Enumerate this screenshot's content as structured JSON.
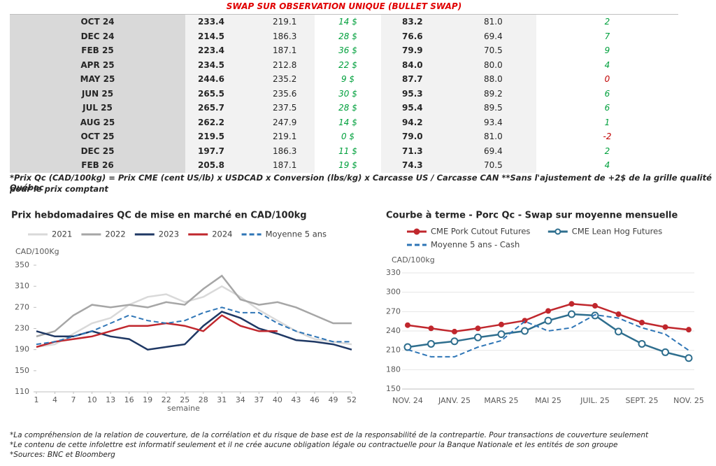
{
  "table": {
    "title": "SWAP SUR OBSERVATION UNIQUE (BULLET SWAP)",
    "rows": [
      [
        "OCT 24",
        "233.4",
        "219.1",
        "14 $",
        "83.2",
        "81.0",
        "2"
      ],
      [
        "DEC 24",
        "214.5",
        "186.3",
        "28 $",
        "76.6",
        "69.4",
        "7"
      ],
      [
        "FEB 25",
        "223.4",
        "187.1",
        "36 $",
        "79.9",
        "70.5",
        "9"
      ],
      [
        "APR 25",
        "234.5",
        "212.8",
        "22 $",
        "84.0",
        "80.0",
        "4"
      ],
      [
        "MAY 25",
        "244.6",
        "235.2",
        "9 $",
        "87.7",
        "88.0",
        "0"
      ],
      [
        "JUN 25",
        "265.5",
        "235.6",
        "30 $",
        "95.3",
        "89.2",
        "6"
      ],
      [
        "JUL 25",
        "265.7",
        "237.5",
        "28 $",
        "95.4",
        "89.5",
        "6"
      ],
      [
        "AUG 25",
        "262.2",
        "247.9",
        "14 $",
        "94.2",
        "93.4",
        "1"
      ],
      [
        "OCT 25",
        "219.5",
        "219.1",
        "0 $",
        "79.0",
        "81.0",
        "-2"
      ],
      [
        "DEC 25",
        "197.7",
        "186.3",
        "11 $",
        "71.3",
        "69.4",
        "2"
      ],
      [
        "FEB 26",
        "205.8",
        "187.1",
        "19 $",
        "74.3",
        "70.5",
        "4"
      ]
    ],
    "note": [
      "*Prix Qc (CAD/100kg) = Prix CME (cent US/lb) x USDCAD x Conversion (lbs/kg) x Carcasse US / Carcasse CAN **Sans l'ajustement de +2$ de la grille qualité Québec",
      "pour le prix comptant"
    ]
  },
  "chart_data": [
    {
      "type": "line",
      "title": "Prix hebdomadaires QC de mise en marché en CAD/100kg",
      "y_label": "CAD/100Kg",
      "x_label": "semaine",
      "x": [
        1,
        4,
        7,
        10,
        13,
        16,
        19,
        22,
        25,
        28,
        31,
        34,
        37,
        40,
        43,
        46,
        49,
        52
      ],
      "xlim": [
        1,
        52
      ],
      "xticks": [
        1,
        4,
        7,
        10,
        13,
        16,
        19,
        22,
        25,
        28,
        31,
        34,
        37,
        40,
        43,
        46,
        49,
        52
      ],
      "ylim": [
        110,
        350
      ],
      "yticks": [
        110,
        150,
        190,
        230,
        270,
        310,
        350
      ],
      "grid": false,
      "series": [
        {
          "name": "2021",
          "color": "#d9d9d9",
          "values": [
            195,
            200,
            220,
            240,
            250,
            275,
            290,
            295,
            280,
            290,
            310,
            290,
            265,
            245,
            225,
            210,
            205,
            200
          ]
        },
        {
          "name": "2022",
          "color": "#a6a6a6",
          "values": [
            215,
            225,
            255,
            275,
            270,
            275,
            270,
            280,
            275,
            305,
            330,
            285,
            275,
            280,
            270,
            255,
            240,
            240
          ]
        },
        {
          "name": "2023",
          "color": "#1f3864",
          "values": [
            225,
            215,
            215,
            225,
            215,
            210,
            190,
            195,
            200,
            235,
            262,
            250,
            230,
            220,
            208,
            205,
            200,
            190
          ]
        },
        {
          "name": "2024",
          "color": "#c0272d",
          "values": [
            195,
            205,
            210,
            215,
            225,
            235,
            235,
            240,
            235,
            225,
            255,
            235,
            225,
            225,
            null,
            null,
            null,
            null
          ]
        },
        {
          "name": "Moyenne 5 ans",
          "color": "#2e75b6",
          "dash": true,
          "values": [
            200,
            205,
            215,
            225,
            240,
            255,
            245,
            240,
            245,
            260,
            270,
            260,
            260,
            240,
            225,
            215,
            205,
            205
          ]
        }
      ]
    },
    {
      "type": "line",
      "title": "Courbe à terme - Porc Qc - Swap sur moyenne mensuelle",
      "y_label": "CAD/100kg",
      "categories": [
        "NOV. 24",
        null,
        "JANV. 25",
        null,
        "MARS 25",
        null,
        "MAI 25",
        null,
        "JUIL. 25",
        null,
        "SEPT. 25",
        null,
        "NOV. 25"
      ],
      "ylim": [
        150,
        330
      ],
      "yticks": [
        150,
        180,
        210,
        240,
        270,
        300,
        330
      ],
      "grid": true,
      "series": [
        {
          "name": "CME Pork Cutout Futures",
          "color": "#c0272d",
          "marker": "filled",
          "values": [
            249,
            244,
            239,
            244,
            250,
            256,
            271,
            282,
            279,
            266,
            253,
            246,
            242
          ]
        },
        {
          "name": "CME Lean Hog Futures",
          "color": "#2e6e8e",
          "marker": "open",
          "values": [
            215,
            220,
            224,
            230,
            235,
            240,
            256,
            266,
            264,
            239,
            220,
            207,
            198
          ]
        },
        {
          "name": "Moyenne 5 ans - Cash",
          "color": "#2e75b6",
          "dash": true,
          "values": [
            211,
            200,
            200,
            215,
            225,
            255,
            240,
            245,
            265,
            260,
            245,
            235,
            210
          ]
        }
      ]
    }
  ],
  "footer": [
    "*La compréhension de la relation de couverture, de la corrélation et du risque de base est de la responsabilité de la contrepartie. Pour transactions de couverture seulement",
    "*Le contenu de cette infolettre est informatif seulement et il ne crée aucune obligation légale ou contractuelle pour la Banque Nationale et les entités de son groupe",
    "*Sources: BNC et Bloomberg"
  ]
}
